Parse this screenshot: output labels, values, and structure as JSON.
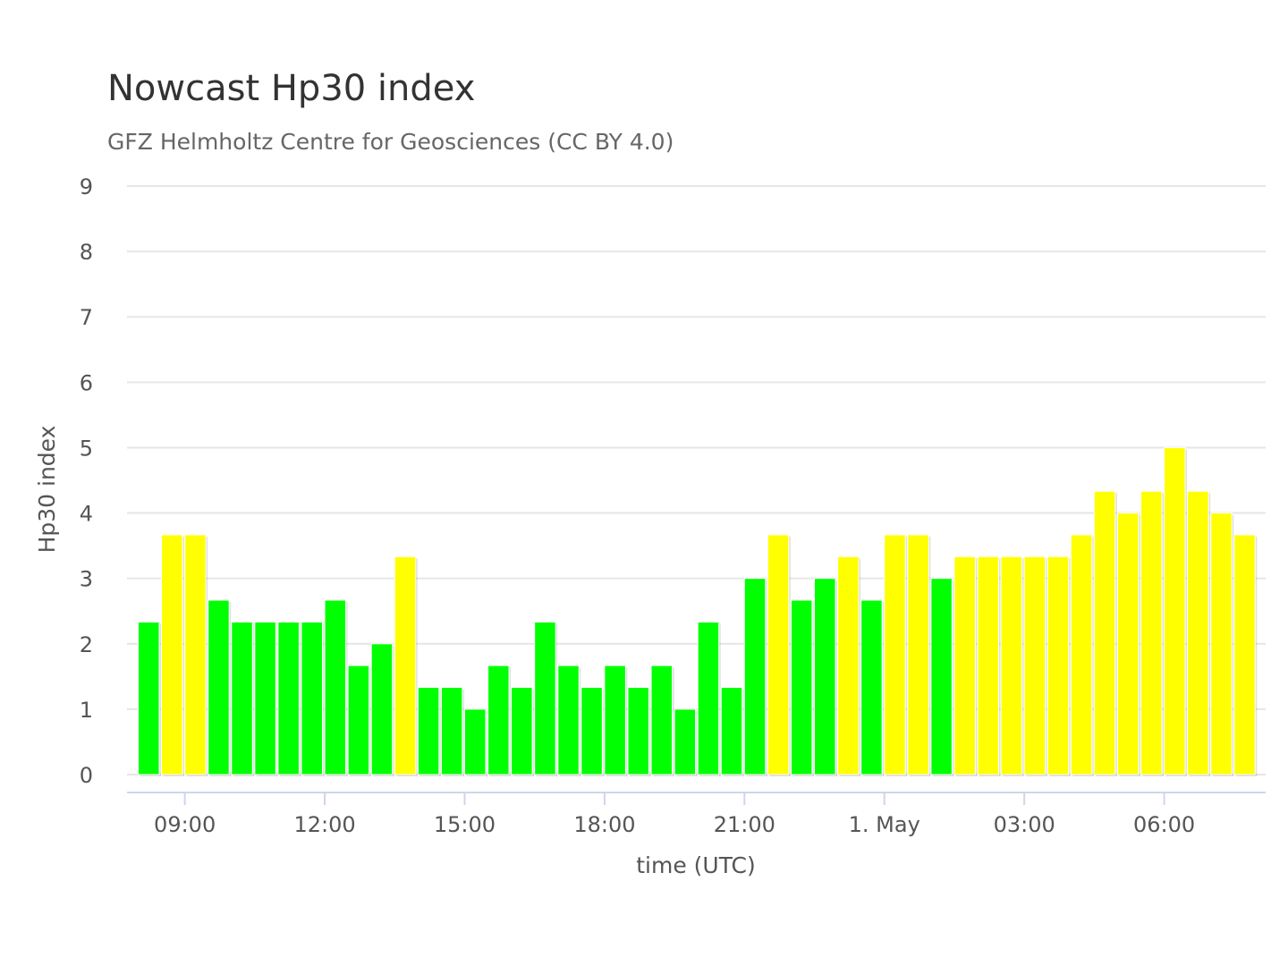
{
  "chart_data": {
    "type": "bar",
    "title": "Nowcast Hp30 index",
    "subtitle": "GFZ Helmholtz Centre for Geosciences (CC BY 4.0)",
    "xlabel": "time (UTC)",
    "ylabel": "Hp30 index",
    "ylim": [
      0,
      9
    ],
    "y_ticks": [
      "0",
      "1",
      "2",
      "3",
      "4",
      "5",
      "6",
      "7",
      "8",
      "9"
    ],
    "x_tick_labels": [
      "09:00",
      "12:00",
      "15:00",
      "18:00",
      "21:00",
      "1. May",
      "03:00",
      "06:00"
    ],
    "interval": "30 min",
    "first_bar_start": "08:00",
    "grid": true,
    "legend": "none",
    "values": [
      2.333,
      3.667,
      3.667,
      2.667,
      2.333,
      2.333,
      2.333,
      2.333,
      2.667,
      1.667,
      2.0,
      3.333,
      1.333,
      1.333,
      1.0,
      1.667,
      1.333,
      2.333,
      1.667,
      1.333,
      1.667,
      1.333,
      1.667,
      1.0,
      2.333,
      1.333,
      3.0,
      3.667,
      2.667,
      3.0,
      3.333,
      2.667,
      3.667,
      3.667,
      3.0,
      3.333,
      3.333,
      3.333,
      3.333,
      3.333,
      3.667,
      4.333,
      4.0,
      4.333,
      5.0,
      4.333,
      4.0,
      3.667
    ],
    "colors": [
      "#00ff00",
      "#ffff00",
      "#ffff00",
      "#00ff00",
      "#00ff00",
      "#00ff00",
      "#00ff00",
      "#00ff00",
      "#00ff00",
      "#00ff00",
      "#00ff00",
      "#ffff00",
      "#00ff00",
      "#00ff00",
      "#00ff00",
      "#00ff00",
      "#00ff00",
      "#00ff00",
      "#00ff00",
      "#00ff00",
      "#00ff00",
      "#00ff00",
      "#00ff00",
      "#00ff00",
      "#00ff00",
      "#00ff00",
      "#00ff00",
      "#ffff00",
      "#00ff00",
      "#00ff00",
      "#ffff00",
      "#00ff00",
      "#ffff00",
      "#ffff00",
      "#00ff00",
      "#ffff00",
      "#ffff00",
      "#ffff00",
      "#ffff00",
      "#ffff00",
      "#ffff00",
      "#ffff00",
      "#ffff00",
      "#ffff00",
      "#ffff00",
      "#ffff00",
      "#ffff00",
      "#ffff00"
    ]
  },
  "colors": {
    "gridline": "#e6e6e6",
    "x_axis": "#ccd6eb",
    "text": "#555555"
  }
}
